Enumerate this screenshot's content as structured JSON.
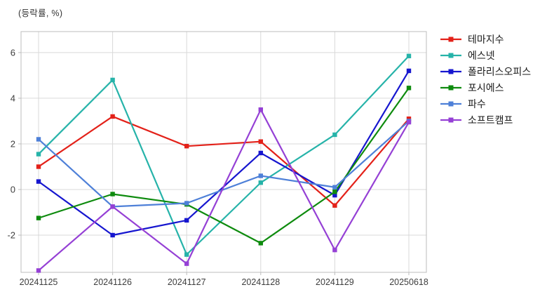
{
  "title": "(등락률, %)",
  "chart_data": {
    "type": "line",
    "title": "(등락률, %)",
    "xlabel": "",
    "ylabel": "(등락률, %)",
    "categories": [
      "20241125",
      "20241126",
      "20241127",
      "20241128",
      "20241129",
      "20250618"
    ],
    "series": [
      {
        "name": "테마지수",
        "color": "#e32119",
        "values": [
          1.0,
          3.2,
          1.9,
          2.1,
          -0.7,
          3.1
        ]
      },
      {
        "name": "에스넷",
        "color": "#26b3a9",
        "values": [
          1.55,
          4.8,
          -2.85,
          0.3,
          2.4,
          5.85
        ]
      },
      {
        "name": "폴라리스오피스",
        "color": "#1616cf",
        "values": [
          0.35,
          -2.0,
          -1.35,
          1.6,
          -0.25,
          5.2
        ]
      },
      {
        "name": "포시에스",
        "color": "#0e8b0e",
        "values": [
          -1.25,
          -0.2,
          -0.65,
          -2.35,
          -0.1,
          4.45
        ]
      },
      {
        "name": "파수",
        "color": "#4e80d8",
        "values": [
          2.2,
          -0.75,
          -0.6,
          0.6,
          0.1,
          3.0
        ]
      },
      {
        "name": "소프트캠프",
        "color": "#9540d5",
        "values": [
          -3.55,
          -0.75,
          -3.25,
          3.5,
          -2.65,
          2.95
        ]
      }
    ],
    "yticks": [
      -2,
      0,
      2,
      4,
      6
    ],
    "ytick_labels": [
      "-2",
      "0",
      "2",
      "4",
      "6"
    ],
    "ylim": [
      -3.63,
      6.92
    ],
    "grid": true,
    "legend_position": "right"
  },
  "colors": {
    "background": "#ffffff",
    "grid": "#d9d9d9",
    "border": "#bdbdbd",
    "tick_label": "#3d3d3d",
    "title": "#333333",
    "legend_text": "#1a1a1a"
  }
}
